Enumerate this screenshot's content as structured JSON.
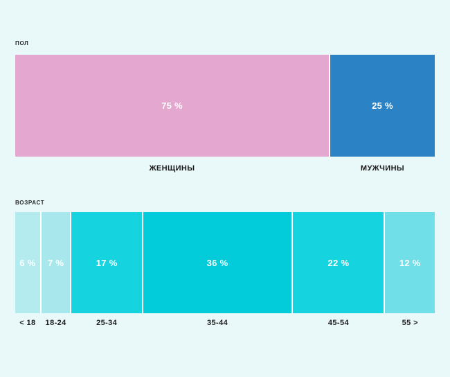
{
  "page": {
    "background_color": "#e9f8f9",
    "gap_color": "#ffffff"
  },
  "charts": [
    {
      "title": "ПОЛ",
      "segments": [
        {
          "label": "ЖЕНЩИНЫ",
          "value": 75,
          "value_label": "75 %",
          "color": "#e4a7cf",
          "text_color": "#ffffff"
        },
        {
          "label": "МУЖЧИНЫ",
          "value": 25,
          "value_label": "25 %",
          "color": "#2b82c5",
          "text_color": "#ffffff"
        }
      ]
    },
    {
      "title": "ВОЗРАСТ",
      "segments": [
        {
          "label": "< 18",
          "value": 6,
          "value_label": "6 %",
          "color": "#b3ebef",
          "text_color": "#ffffff"
        },
        {
          "label": "18-24",
          "value": 7,
          "value_label": "7 %",
          "color": "#a8e8ed",
          "text_color": "#ffffff"
        },
        {
          "label": "25-34",
          "value": 17,
          "value_label": "17 %",
          "color": "#16d3e0",
          "text_color": "#ffffff"
        },
        {
          "label": "35-44",
          "value": 36,
          "value_label": "36 %",
          "color": "#02ccda",
          "text_color": "#ffffff"
        },
        {
          "label": "45-54",
          "value": 22,
          "value_label": "22 %",
          "color": "#16d3e0",
          "text_color": "#ffffff"
        },
        {
          "label": "55 >",
          "value": 12,
          "value_label": "12 %",
          "color": "#70dfe8",
          "text_color": "#ffffff"
        }
      ]
    }
  ],
  "chart_data": [
    {
      "type": "bar",
      "subtype": "horizontal-100pct-stacked",
      "title": "ПОЛ",
      "categories": [
        "ЖЕНЩИНЫ",
        "МУЖЧИНЫ"
      ],
      "values": [
        75,
        25
      ],
      "unit": "%",
      "colors": [
        "#e4a7cf",
        "#2b82c5"
      ],
      "data_labels": [
        "75 %",
        "25 %"
      ],
      "legend_position": "below-segments",
      "grid": false,
      "xlim": [
        0,
        100
      ]
    },
    {
      "type": "bar",
      "subtype": "horizontal-100pct-stacked",
      "title": "ВОЗРАСТ",
      "categories": [
        "< 18",
        "18-24",
        "25-34",
        "35-44",
        "45-54",
        "55 >"
      ],
      "values": [
        6,
        7,
        17,
        36,
        22,
        12
      ],
      "unit": "%",
      "colors": [
        "#b3ebef",
        "#a8e8ed",
        "#16d3e0",
        "#02ccda",
        "#16d3e0",
        "#70dfe8"
      ],
      "data_labels": [
        "6 %",
        "7 %",
        "17 %",
        "36 %",
        "22 %",
        "12 %"
      ],
      "legend_position": "below-segments",
      "grid": false,
      "xlim": [
        0,
        100
      ]
    }
  ]
}
